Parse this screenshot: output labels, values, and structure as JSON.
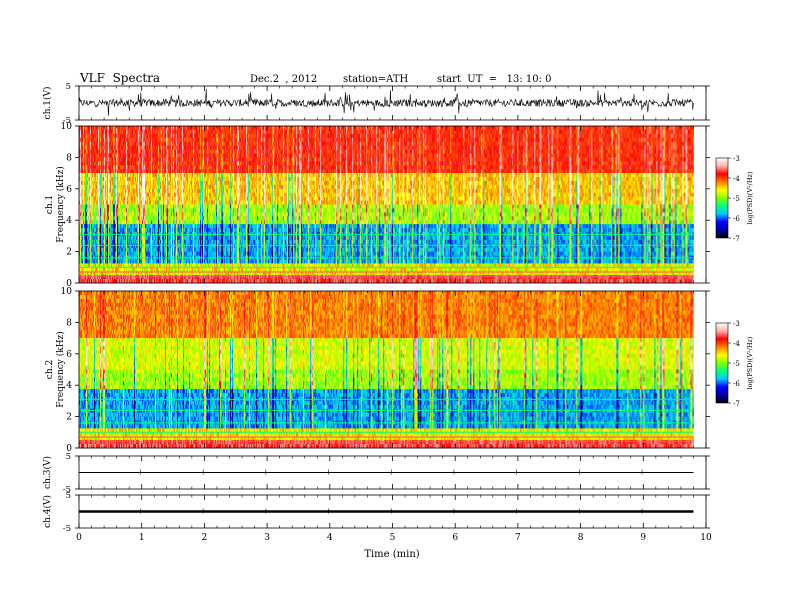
{
  "header": {
    "title": "VLF  Spectra",
    "date": "Dec.2  , 2012",
    "station": "station=ATH",
    "start": "start  UT  =   13: 10: 0"
  },
  "colors": {
    "colormap": [
      "#000000",
      "#0000a0",
      "#0000ff",
      "#00c8ff",
      "#00ff80",
      "#80ff00",
      "#ffff00",
      "#ff8000",
      "#ff0000",
      "#ffb0b0",
      "#ffffff"
    ]
  },
  "chart_data": [
    {
      "type": "line",
      "id": "ch1-waveform",
      "ylabel": "ch.1(V)",
      "ylim": [
        -5,
        5
      ],
      "yticks": [
        "5",
        "-5"
      ],
      "x_range_min": [
        0,
        9.8
      ],
      "description_level": "noisy waveform, amplitude ~±1.5 V with spikes"
    },
    {
      "type": "heatmap",
      "id": "ch1-spectrogram",
      "ylabel": "ch.1\nFrequency  (kHz)",
      "ylabel_line1": "ch.1",
      "ylabel_line2": "Frequency  (kHz)",
      "ylim": [
        0,
        10
      ],
      "yticks": [
        "0",
        "2",
        "4",
        "6",
        "8",
        "10"
      ],
      "colorbar": {
        "label": "log(PSD)(V²/Hz)",
        "range": [
          -7,
          -3
        ],
        "ticks": [
          "-3",
          "-4",
          "-5",
          "-6",
          "-7"
        ]
      }
    },
    {
      "type": "heatmap",
      "id": "ch2-spectrogram",
      "ylabel": "ch.2\nFrequency  (kHz)",
      "ylabel_line1": "ch.2",
      "ylabel_line2": "Frequency  (kHz)",
      "ylim": [
        0,
        10
      ],
      "yticks": [
        "0",
        "2",
        "4",
        "6",
        "8",
        "10"
      ],
      "colorbar": {
        "label": "log(PSD)(V²/Hz)",
        "range": [
          -7,
          -3
        ],
        "ticks": [
          "-3",
          "-4",
          "-5",
          "-6",
          "-7"
        ]
      }
    },
    {
      "type": "line",
      "id": "ch3-waveform",
      "ylabel": "ch.3(V)",
      "ylim": [
        -5,
        5
      ],
      "yticks": [
        "5",
        "-5"
      ],
      "level": 0
    },
    {
      "type": "line",
      "id": "ch4-waveform",
      "ylabel": "ch.4(V)",
      "ylim": [
        -5,
        5
      ],
      "yticks": [
        "5",
        "-5"
      ],
      "level": 0
    }
  ],
  "xaxis": {
    "label": "Time  (min)",
    "xlim": [
      0,
      10
    ],
    "ticks": [
      "0",
      "1",
      "2",
      "3",
      "4",
      "5",
      "6",
      "7",
      "8",
      "9",
      "10"
    ],
    "data_end": 9.8
  }
}
